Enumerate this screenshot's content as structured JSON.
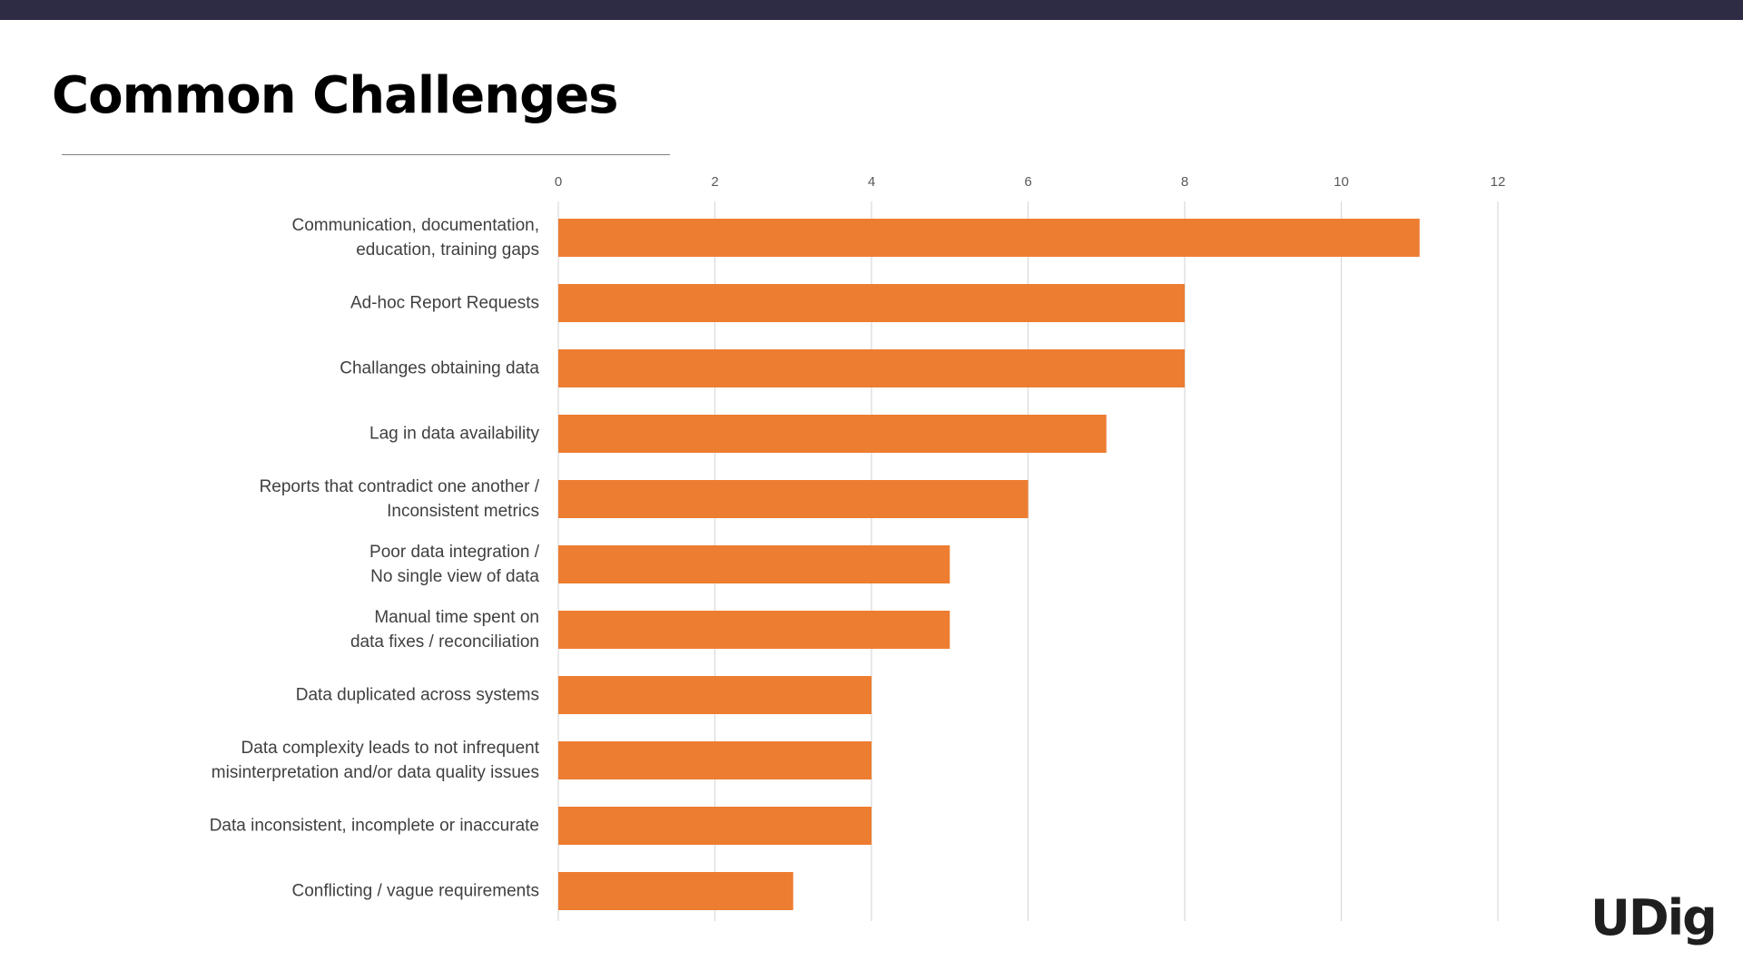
{
  "header": {
    "title": "Common Challenges"
  },
  "brand": {
    "logo_text": "UDig"
  },
  "colors": {
    "top_band": "#2e2c44",
    "bar": "#ed7d31",
    "grid": "#d9d9d9",
    "text": "#404040"
  },
  "chart_data": {
    "type": "bar",
    "orientation": "horizontal",
    "title": "",
    "xlabel": "",
    "ylabel": "",
    "xlim": [
      0,
      12
    ],
    "x_ticks": [
      "0",
      "2",
      "4",
      "6",
      "8",
      "10",
      "12"
    ],
    "grid": "vertical",
    "axis_position": "top",
    "legend": "none",
    "categories": [
      [
        "Communication, documentation,",
        "education, training gaps"
      ],
      [
        "Ad-hoc Report Requests"
      ],
      [
        "Challanges obtaining data"
      ],
      [
        "Lag in data availability"
      ],
      [
        "Reports that contradict one another /",
        "Inconsistent metrics"
      ],
      [
        "Poor data integration /",
        "No single view of data"
      ],
      [
        "Manual time spent on",
        "data fixes / reconciliation"
      ],
      [
        "Data duplicated across systems"
      ],
      [
        "Data complexity leads to not infrequent",
        "misinterpretation and/or data quality issues"
      ],
      [
        "Data inconsistent, incomplete or inaccurate"
      ],
      [
        "Conflicting / vague requirements"
      ]
    ],
    "values": [
      11,
      8,
      8,
      7,
      6,
      5,
      5,
      4,
      4,
      4,
      3
    ]
  }
}
